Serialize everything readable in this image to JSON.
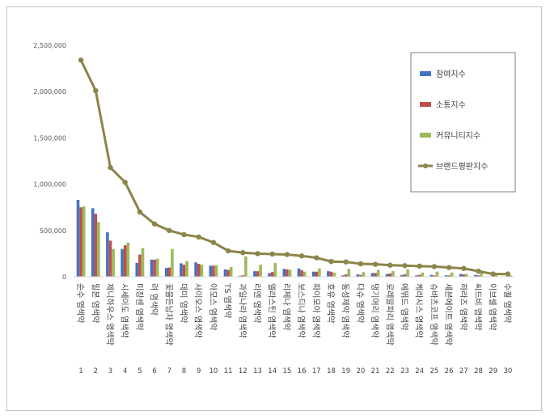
{
  "chart_data": {
    "type": "bar",
    "title": "",
    "xlabel": "",
    "ylabel": "",
    "ylim": [
      0,
      2500000
    ],
    "yticks": [
      "0",
      "500,000",
      "1,000,000",
      "1,500,000",
      "2,000,000",
      "2,500,000"
    ],
    "grid": false,
    "legend_position": "right",
    "categories": [
      "순수 염색약",
      "밀본 염색약",
      "제니하우스 염색약",
      "시세이도 염색약",
      "미장센 염색약",
      "려 염색약",
      "꽃을든남자 염색약",
      "데미 염색약",
      "사이오스 염색약",
      "아모스 염색약",
      "TS 염색약",
      "과일나라 염색약",
      "리엔 염색약",
      "엘라스틴 염색약",
      "리체나 염색약",
      "보스티나 염색약",
      "파이모아 염색약",
      "호유 염색약",
      "동성제약 염색약",
      "다슈 염색약",
      "댕기머리 염색약",
      "로레알파리 염색약",
      "에뛰드 염색약",
      "케라시스 염색약",
      "슈바츠코프 염색약",
      "세븐에이트 염색약",
      "하라즈 염색약",
      "씨드비 염색약",
      "이브셀 염색약",
      "수퀄 염색약"
    ],
    "ranks": [
      "1",
      "2",
      "3",
      "4",
      "5",
      "6",
      "7",
      "8",
      "9",
      "10",
      "11",
      "12",
      "13",
      "14",
      "15",
      "16",
      "17",
      "18",
      "19",
      "20",
      "21",
      "22",
      "23",
      "24",
      "25",
      "26",
      "27",
      "28",
      "29",
      "30"
    ],
    "series": [
      {
        "name": "참여지수",
        "kind": "bar",
        "color": "#4472c4",
        "values": [
          830000,
          740000,
          480000,
          300000,
          150000,
          185000,
          95000,
          145000,
          155000,
          120000,
          80000,
          10000,
          60000,
          40000,
          85000,
          90000,
          55000,
          60000,
          15000,
          25000,
          40000,
          30000,
          20000,
          15000,
          20000,
          15000,
          30000,
          20000,
          5000,
          5000
        ]
      },
      {
        "name": "소통지수",
        "kind": "bar",
        "color": "#c0504d",
        "values": [
          750000,
          680000,
          390000,
          340000,
          240000,
          185000,
          100000,
          130000,
          140000,
          120000,
          75000,
          15000,
          60000,
          50000,
          80000,
          70000,
          55000,
          55000,
          25000,
          20000,
          40000,
          35000,
          25000,
          20000,
          15000,
          15000,
          25000,
          15000,
          5000,
          5000
        ]
      },
      {
        "name": "커뮤니티지수",
        "kind": "bar",
        "color": "#9bbb59",
        "values": [
          760000,
          590000,
          300000,
          370000,
          310000,
          195000,
          300000,
          170000,
          130000,
          125000,
          105000,
          220000,
          130000,
          150000,
          75000,
          55000,
          90000,
          45000,
          85000,
          50000,
          75000,
          60000,
          80000,
          45000,
          55000,
          45000,
          30000,
          40000,
          20000,
          15000
        ]
      },
      {
        "name": "브랜드평판지수",
        "kind": "line",
        "color": "#8c8449",
        "values": [
          2340000,
          2010000,
          1180000,
          1020000,
          700000,
          570000,
          500000,
          455000,
          430000,
          370000,
          280000,
          260000,
          250000,
          245000,
          240000,
          225000,
          205000,
          165000,
          160000,
          140000,
          135000,
          125000,
          120000,
          115000,
          110000,
          100000,
          90000,
          60000,
          30000,
          30000
        ]
      }
    ]
  }
}
